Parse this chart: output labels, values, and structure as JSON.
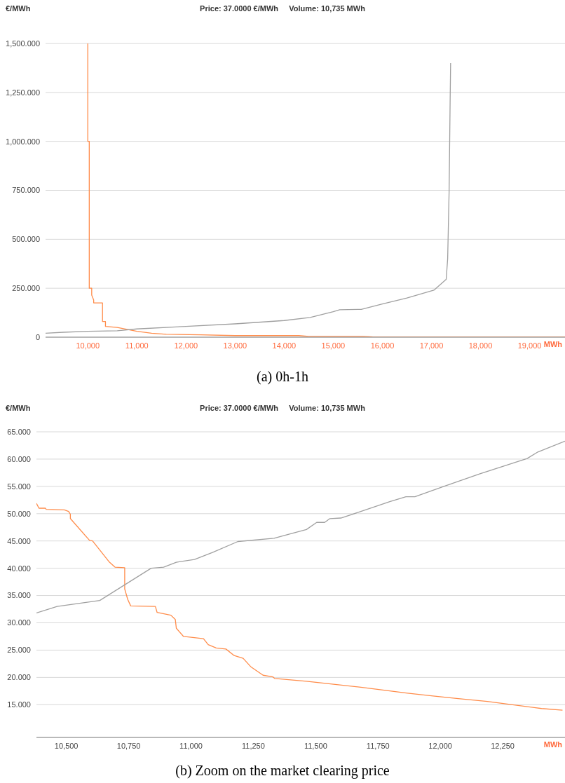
{
  "chart_data": [
    {
      "type": "line",
      "title": "Price: 37.0000 €/MWh     Volume: 10,735 MWh",
      "ylabel": "€/MWh",
      "xlabel": "MWh",
      "annotations": [
        "(a) 0h-1h"
      ],
      "xlim": [
        9140,
        19720
      ],
      "xticks": [
        {
          "value": 10000,
          "label": "10,000"
        },
        {
          "value": 11000,
          "label": "11,000"
        },
        {
          "value": 12000,
          "label": "12,000"
        },
        {
          "value": 13000,
          "label": "13,000"
        },
        {
          "value": 14000,
          "label": "14,000"
        },
        {
          "value": 15000,
          "label": "15,000"
        },
        {
          "value": 16000,
          "label": "16,000"
        },
        {
          "value": 17000,
          "label": "17,000"
        },
        {
          "value": 18000,
          "label": "18,000"
        },
        {
          "value": 19000,
          "label": "19,000"
        }
      ],
      "ylim": [
        0,
        1500
      ],
      "yticks": [
        0,
        {
          "value": 250,
          "label": "250.000"
        },
        {
          "value": 500,
          "label": "500.000"
        },
        {
          "value": 750,
          "label": "750.000"
        },
        {
          "value": 1000,
          "label": "1,000.000"
        },
        {
          "value": 1250,
          "label": "1,250.000"
        },
        {
          "value": 1500,
          "label": "1,500.000"
        }
      ],
      "grid": "y",
      "legend": false,
      "marker": "none",
      "line_style": "solid",
      "series": [
        {
          "color": "#ff8c4a",
          "x": [
            10000,
            10000,
            10030,
            10030,
            10080,
            10080,
            10120,
            10120,
            10300,
            10300,
            10360,
            10360,
            10600,
            10800,
            11000,
            11300,
            11600,
            12300,
            13000,
            14300,
            14500,
            15600,
            15800,
            19720
          ],
          "values": [
            1500,
            1000,
            1000,
            250,
            250,
            215,
            190,
            175,
            175,
            80,
            80,
            55,
            50,
            40,
            30,
            20,
            15,
            12,
            8,
            8,
            4,
            4,
            1,
            0
          ]
        },
        {
          "color": "#a0a0a0",
          "x": [
            9140,
            9500,
            10000,
            10600,
            11000,
            12000,
            13000,
            14000,
            14530,
            15000,
            15130,
            15570,
            16000,
            16500,
            17050,
            17300,
            17330,
            17360,
            17380,
            17390
          ],
          "values": [
            20,
            25,
            30,
            33,
            42,
            55,
            68,
            85,
            101,
            130,
            140,
            142,
            170,
            200,
            240,
            295,
            400,
            750,
            1200,
            1400
          ]
        }
      ]
    },
    {
      "type": "line",
      "title": "Price: 37.0000 €/MWh     Volume: 10,735 MWh",
      "ylabel": "€/MWh",
      "xlabel": "MWh",
      "annotations": [
        "(b) Zoom on the market clearing price"
      ],
      "xlim": [
        10380,
        12500
      ],
      "xticks": [
        {
          "value": 10500,
          "label": "10,500"
        },
        {
          "value": 10750,
          "label": "10,750"
        },
        {
          "value": 11000,
          "label": "11,000"
        },
        {
          "value": 11250,
          "label": "11,250"
        },
        {
          "value": 11500,
          "label": "11,500"
        },
        {
          "value": 11750,
          "label": "11,750"
        },
        {
          "value": 12000,
          "label": "12,000"
        },
        {
          "value": 12250,
          "label": "12,250"
        }
      ],
      "ylim": [
        9,
        65
      ],
      "yticks": [
        {
          "value": 15,
          "label": "15.000"
        },
        {
          "value": 20,
          "label": "20.000"
        },
        {
          "value": 25,
          "label": "25.000"
        },
        {
          "value": 30,
          "label": "30.000"
        },
        {
          "value": 35,
          "label": "35.000"
        },
        {
          "value": 40,
          "label": "40.000"
        },
        {
          "value": 45,
          "label": "45.000"
        },
        {
          "value": 50,
          "label": "50.000"
        },
        {
          "value": 55,
          "label": "55.000"
        },
        {
          "value": 60,
          "label": "60.000"
        },
        {
          "value": 65,
          "label": "65.000"
        }
      ],
      "grid": "y",
      "legend": false,
      "marker": "none",
      "line_style": "solid",
      "series": [
        {
          "color": "#ff8c4a",
          "x": [
            10380,
            10390,
            10416,
            10419,
            10492,
            10509,
            10516,
            10516,
            10593,
            10605,
            10673,
            10695,
            10734,
            10734,
            10746,
            10758,
            10857,
            10864,
            10919,
            10937,
            10941,
            10970,
            11050,
            11069,
            11101,
            11140,
            11173,
            11209,
            11241,
            11289,
            11328,
            11336,
            11463,
            11681,
            11869,
            11971,
            12072,
            12188,
            12290,
            12406,
            12490
          ],
          "values": [
            51.9,
            51.0,
            51.0,
            50.8,
            50.7,
            50.4,
            49.9,
            49.1,
            45.1,
            45.0,
            41.1,
            40.2,
            40.1,
            36.2,
            34.3,
            33.1,
            33.0,
            31.9,
            31.4,
            30.6,
            29.0,
            27.5,
            27.1,
            26.0,
            25.4,
            25.2,
            24.0,
            23.5,
            21.9,
            20.4,
            20.1,
            19.8,
            19.3,
            18.2,
            17.1,
            16.6,
            16.1,
            15.6,
            15.0,
            14.3,
            14.0
          ]
        },
        {
          "color": "#a0a0a0",
          "x": [
            10380,
            10463,
            10634,
            10840,
            10890,
            10941,
            11014,
            11086,
            11188,
            11333,
            11463,
            11504,
            11536,
            11557,
            11601,
            11681,
            11797,
            11862,
            11898,
            12014,
            12159,
            12348,
            12391,
            12500
          ],
          "values": [
            31.8,
            33.0,
            34.1,
            40.0,
            40.2,
            41.1,
            41.6,
            42.9,
            44.9,
            45.5,
            47.1,
            48.4,
            48.4,
            49.1,
            49.2,
            50.4,
            52.2,
            53.1,
            53.1,
            55.0,
            57.3,
            60.1,
            61.3,
            63.3
          ]
        }
      ]
    }
  ]
}
